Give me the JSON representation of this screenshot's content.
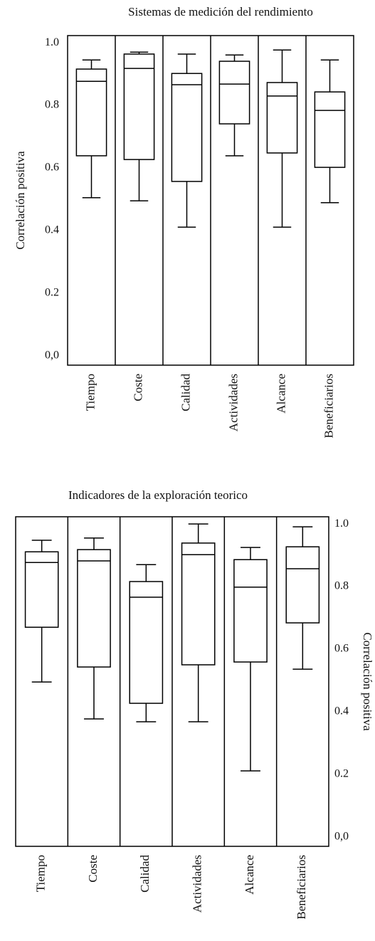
{
  "chart_data": [
    {
      "type": "box",
      "title": "Sistemas de medición del rendimiento",
      "ylabel": "Correlación positiva",
      "y_axis_side": "left",
      "categories": [
        "Tiempo",
        "Coste",
        "Calidad",
        "Actividades",
        "Alcance",
        "Beneficiarios"
      ],
      "max": [
        0.945,
        0.97,
        0.964,
        0.961,
        0.977,
        0.945
      ],
      "q3": [
        0.916,
        0.964,
        0.902,
        0.941,
        0.873,
        0.843
      ],
      "median": [
        0.877,
        0.918,
        0.866,
        0.868,
        0.83,
        0.784
      ],
      "q1": [
        0.639,
        0.627,
        0.557,
        0.741,
        0.648,
        0.602
      ],
      "min": [
        0.505,
        0.495,
        0.411,
        0.639,
        0.411,
        0.489
      ],
      "ylim": [
        -0.03,
        1.023
      ],
      "yticks": [
        {
          "value": 1,
          "label": "1.0"
        },
        0.8,
        0.6,
        0.4,
        0.2,
        {
          "value": 0,
          "label": "0,0"
        }
      ],
      "color": "#000000"
    },
    {
      "type": "box",
      "title": "Indicadores de la exploración teorico",
      "ylabel": "Correlación positiva",
      "y_axis_side": "right",
      "categories": [
        "Tiempo",
        "Coste",
        "Calidad",
        "Actividades",
        "Alcance",
        "Beneficiarios"
      ],
      "max": [
        0.948,
        0.955,
        0.87,
        1.0,
        0.925,
        0.991
      ],
      "q3": [
        0.911,
        0.918,
        0.816,
        0.939,
        0.886,
        0.927
      ],
      "median": [
        0.877,
        0.882,
        0.766,
        0.902,
        0.798,
        0.857
      ],
      "q1": [
        0.67,
        0.543,
        0.427,
        0.55,
        0.559,
        0.684
      ],
      "min": [
        0.495,
        0.377,
        0.368,
        0.368,
        0.211,
        0.536
      ],
      "ylim": [
        -0.03,
        1.023
      ],
      "yticks": [
        {
          "value": 1,
          "label": "1.0"
        },
        0.8,
        0.6,
        0.4,
        0.2,
        {
          "value": 0,
          "label": "0,0"
        }
      ],
      "color": "#000000"
    }
  ]
}
